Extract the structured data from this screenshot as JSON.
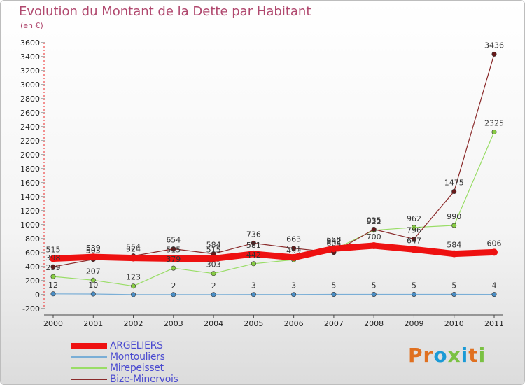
{
  "header": {
    "title": "Evolution du Montant de la Dette par Habitant",
    "subtitle": "(en €)"
  },
  "logo": {
    "text": "Proxiti",
    "colors": [
      "#e07020",
      "#e07020",
      "#1a9ad6",
      "#7ac142",
      "#1a9ad6",
      "#e07020",
      "#7ac142"
    ]
  },
  "chart_data": {
    "type": "line",
    "x": [
      "2000",
      "2001",
      "2002",
      "2003",
      "2004",
      "2005",
      "2006",
      "2007",
      "2008",
      "2009",
      "2010",
      "2011"
    ],
    "ylim": [
      -200,
      3600
    ],
    "yticks": [
      -200,
      0,
      200,
      400,
      600,
      800,
      1000,
      1200,
      1400,
      1600,
      1800,
      2000,
      2200,
      2400,
      2600,
      2800,
      3000,
      3200,
      3400,
      3600
    ],
    "grid": false,
    "legend_position": "bottom-left",
    "series": [
      {
        "name": "ARGELIERS",
        "color": "#ee1111",
        "values": [
          515,
          539,
          524,
          515,
          515,
          581,
          531,
          658,
          700,
          647,
          584,
          606
        ],
        "labels": [
          "515",
          "539",
          "524",
          "515",
          "515",
          "581",
          "531",
          "658",
          "700",
          "647",
          "584",
          "606"
        ]
      },
      {
        "name": "Montouliers",
        "color": "#7aaed6",
        "values": [
          12,
          10,
          1,
          2,
          2,
          3,
          3,
          5,
          5,
          5,
          5,
          4
        ],
        "labels": [
          "12",
          "10",
          "",
          "2",
          "2",
          "3",
          "3",
          "5",
          "5",
          "5",
          "5",
          "4"
        ]
      },
      {
        "name": "Mirepeisset",
        "color": "#99dd66",
        "values": [
          259,
          207,
          123,
          379,
          303,
          442,
          499,
          642,
          922,
          962,
          990,
          2325
        ],
        "labels": [
          "259",
          "207",
          "123",
          "379",
          "303",
          "442",
          "499",
          "642",
          "922",
          "962",
          "990",
          "2325"
        ]
      },
      {
        "name": "Bize-Minervois",
        "color": "#8a2a2a",
        "values": [
          398,
          503,
          554,
          654,
          584,
          736,
          663,
          604,
          935,
          796,
          1475,
          3436
        ],
        "labels": [
          "398",
          "503",
          "554",
          "654",
          "584",
          "736",
          "663",
          "604",
          "935",
          "796",
          "1475",
          "3436"
        ]
      }
    ]
  }
}
